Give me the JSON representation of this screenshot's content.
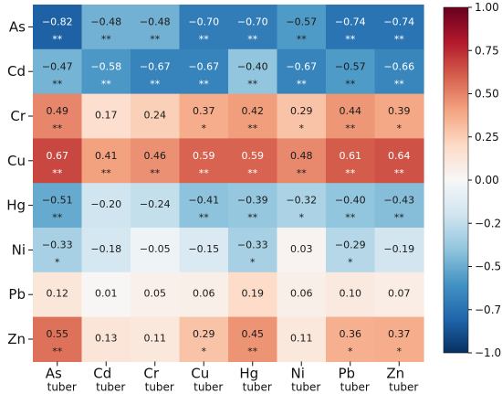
{
  "chart_data": {
    "type": "heatmap",
    "rows": [
      "As",
      "Cd",
      "Cr",
      "Cu",
      "Hg",
      "Ni",
      "Pb",
      "Zn"
    ],
    "columns": [
      {
        "element": "As",
        "suffix": "tuber"
      },
      {
        "element": "Cd",
        "suffix": "tuber"
      },
      {
        "element": "Cr",
        "suffix": "tuber"
      },
      {
        "element": "Cu",
        "suffix": "tuber"
      },
      {
        "element": "Hg",
        "suffix": "tuber"
      },
      {
        "element": "Ni",
        "suffix": "tuber"
      },
      {
        "element": "Pb",
        "suffix": "tuber"
      },
      {
        "element": "Zn",
        "suffix": "tuber"
      }
    ],
    "values": [
      [
        -0.82,
        -0.48,
        -0.48,
        -0.7,
        -0.7,
        -0.57,
        -0.74,
        -0.74
      ],
      [
        -0.47,
        -0.58,
        -0.67,
        -0.67,
        -0.4,
        -0.67,
        -0.57,
        -0.66
      ],
      [
        0.49,
        0.17,
        0.24,
        0.37,
        0.42,
        0.29,
        0.44,
        0.39
      ],
      [
        0.67,
        0.41,
        0.46,
        0.59,
        0.59,
        0.48,
        0.61,
        0.64
      ],
      [
        -0.51,
        -0.2,
        -0.24,
        -0.41,
        -0.39,
        -0.32,
        -0.4,
        -0.43
      ],
      [
        -0.33,
        -0.18,
        -0.05,
        -0.15,
        -0.33,
        0.03,
        -0.29,
        -0.19
      ],
      [
        0.12,
        0.01,
        0.05,
        0.06,
        0.19,
        0.06,
        0.1,
        0.07
      ],
      [
        0.55,
        0.13,
        0.11,
        0.29,
        0.45,
        0.11,
        0.36,
        0.37
      ]
    ],
    "value_labels": [
      [
        "−0.82",
        "−0.48",
        "−0.48",
        "−0.70",
        "−0.70",
        "−0.57",
        "−0.74",
        "−0.74"
      ],
      [
        "−0.47",
        "−0.58",
        "−0.67",
        "−0.67",
        "−0.40",
        "−0.67",
        "−0.57",
        "−0.66"
      ],
      [
        "0.49",
        "0.17",
        "0.24",
        "0.37",
        "0.42",
        "0.29",
        "0.44",
        "0.39"
      ],
      [
        "0.67",
        "0.41",
        "0.46",
        "0.59",
        "0.59",
        "0.48",
        "0.61",
        "0.64"
      ],
      [
        "−0.51",
        "−0.20",
        "−0.24",
        "−0.41",
        "−0.39",
        "−0.32",
        "−0.40",
        "−0.43"
      ],
      [
        "−0.33",
        "−0.18",
        "−0.05",
        "−0.15",
        "−0.33",
        "0.03",
        "−0.29",
        "−0.19"
      ],
      [
        "0.12",
        "0.01",
        "0.05",
        "0.06",
        "0.19",
        "0.06",
        "0.10",
        "0.07"
      ],
      [
        "0.55",
        "0.13",
        "0.11",
        "0.29",
        "0.45",
        "0.11",
        "0.36",
        "0.37"
      ]
    ],
    "significance": [
      [
        "**",
        "**",
        "**",
        "**",
        "**",
        "**",
        "**",
        "**"
      ],
      [
        "**",
        "**",
        "**",
        "**",
        "**",
        "**",
        "**",
        "**"
      ],
      [
        "**",
        "",
        "",
        "*",
        "**",
        "*",
        "**",
        "*"
      ],
      [
        "**",
        "**",
        "**",
        "**",
        "**",
        "**",
        "**",
        "**"
      ],
      [
        "**",
        "",
        "",
        "**",
        "**",
        "*",
        "**",
        "**"
      ],
      [
        "*",
        "",
        "",
        "",
        "*",
        "",
        "*",
        ""
      ],
      [
        "",
        "",
        "",
        "",
        "",
        "",
        "",
        ""
      ],
      [
        "**",
        "",
        "",
        "*",
        "**",
        "",
        "*",
        "*"
      ]
    ],
    "colorbar": {
      "min": -1.0,
      "max": 1.0,
      "colormap": "RdBu_r",
      "tick_values": [
        1.0,
        0.75,
        0.5,
        0.25,
        0.0,
        -0.25,
        -0.5,
        -0.75,
        -1.0
      ],
      "tick_labels": [
        "1.00",
        "0.75",
        "0.50",
        "0.25",
        "0.00",
        "−0.25",
        "−0.50",
        "−0.75",
        "−1.00"
      ]
    },
    "colors": {
      "negative_extreme": "#053061",
      "neutral": "#f7f7f7",
      "positive_extreme": "#67001f"
    }
  }
}
